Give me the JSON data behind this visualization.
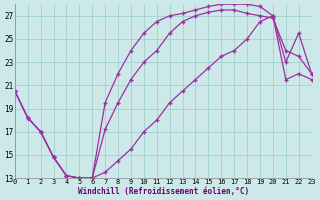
{
  "line1_x": [
    0,
    1,
    2,
    3,
    4,
    5,
    6,
    7,
    8,
    9,
    10,
    11,
    12,
    13,
    14,
    15,
    16,
    17,
    18,
    19,
    20,
    21,
    22,
    23
  ],
  "line1_y": [
    20.5,
    18.2,
    17.0,
    14.8,
    13.2,
    13.0,
    13.0,
    19.5,
    22.0,
    24.0,
    25.5,
    26.5,
    27.0,
    27.2,
    27.5,
    27.8,
    28.0,
    28.0,
    28.0,
    27.8,
    27.0,
    23.0,
    25.5,
    22.0
  ],
  "line2_x": [
    0,
    1,
    2,
    3,
    4,
    5,
    6,
    7,
    8,
    9,
    10,
    11,
    12,
    13,
    14,
    15,
    16,
    17,
    18,
    19,
    20,
    21,
    22,
    23
  ],
  "line2_y": [
    20.5,
    18.2,
    17.0,
    14.8,
    13.2,
    13.0,
    13.0,
    17.2,
    19.5,
    21.5,
    23.0,
    24.0,
    25.5,
    26.5,
    27.0,
    27.3,
    27.5,
    27.5,
    27.2,
    27.0,
    26.8,
    24.0,
    23.5,
    22.0
  ],
  "line3_x": [
    0,
    1,
    2,
    3,
    4,
    5,
    6,
    7,
    8,
    9,
    10,
    11,
    12,
    13,
    14,
    15,
    16,
    17,
    18,
    19,
    20,
    21,
    22,
    23
  ],
  "line3_y": [
    20.5,
    18.2,
    17.0,
    14.8,
    13.2,
    13.0,
    13.0,
    13.5,
    14.5,
    15.5,
    17.0,
    18.0,
    19.5,
    20.5,
    21.5,
    22.5,
    23.5,
    24.0,
    25.0,
    26.5,
    27.0,
    21.5,
    22.0,
    21.5
  ],
  "line_color": "#9b30a0",
  "bg_color": "#cce8e8",
  "grid_color": "#99cccc",
  "xlabel": "Windchill (Refroidissement éolien,°C)",
  "xlim": [
    0,
    23
  ],
  "ylim": [
    13,
    28
  ],
  "yticks": [
    13,
    15,
    17,
    19,
    21,
    23,
    25,
    27
  ],
  "xticks": [
    0,
    1,
    2,
    3,
    4,
    5,
    6,
    7,
    8,
    9,
    10,
    11,
    12,
    13,
    14,
    15,
    16,
    17,
    18,
    19,
    20,
    21,
    22,
    23
  ]
}
